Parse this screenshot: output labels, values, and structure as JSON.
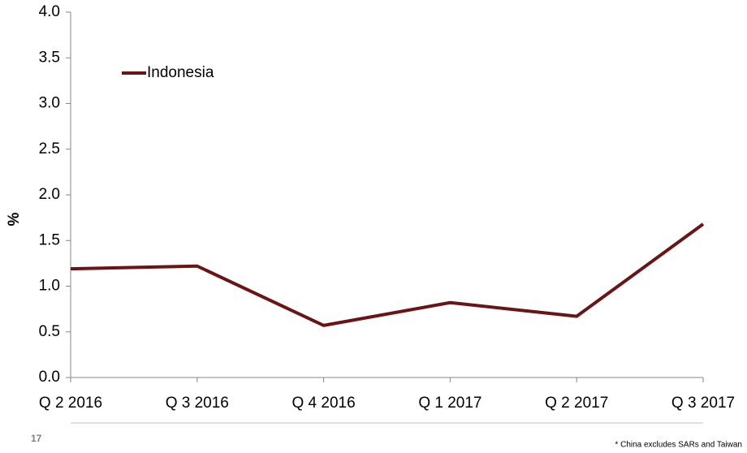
{
  "chart_data": {
    "type": "line",
    "y_label": "%",
    "categories": [
      "Q 2 2016",
      "Q 3 2016",
      "Q 4 2016",
      "Q 1 2017",
      "Q 2 2017",
      "Q 3 2017"
    ],
    "series": [
      {
        "name": "Indonesia",
        "color": "#6b1416",
        "values": [
          1.19,
          1.22,
          0.57,
          0.82,
          0.67,
          1.68
        ]
      }
    ],
    "ylim": [
      0,
      4
    ],
    "yticks": [
      {
        "value": 0,
        "label": "0.0"
      },
      0.5,
      {
        "value": 1,
        "label": "1.0"
      },
      1.5,
      {
        "value": 2,
        "label": "2.0"
      },
      2.5,
      {
        "value": 3,
        "label": "3.0"
      },
      3.5,
      {
        "value": 4,
        "label": "4.0"
      }
    ],
    "grid": false,
    "legend": "upper left"
  },
  "footer": {
    "page_number": "17",
    "note": "* China excludes SARs and Taiwan"
  }
}
